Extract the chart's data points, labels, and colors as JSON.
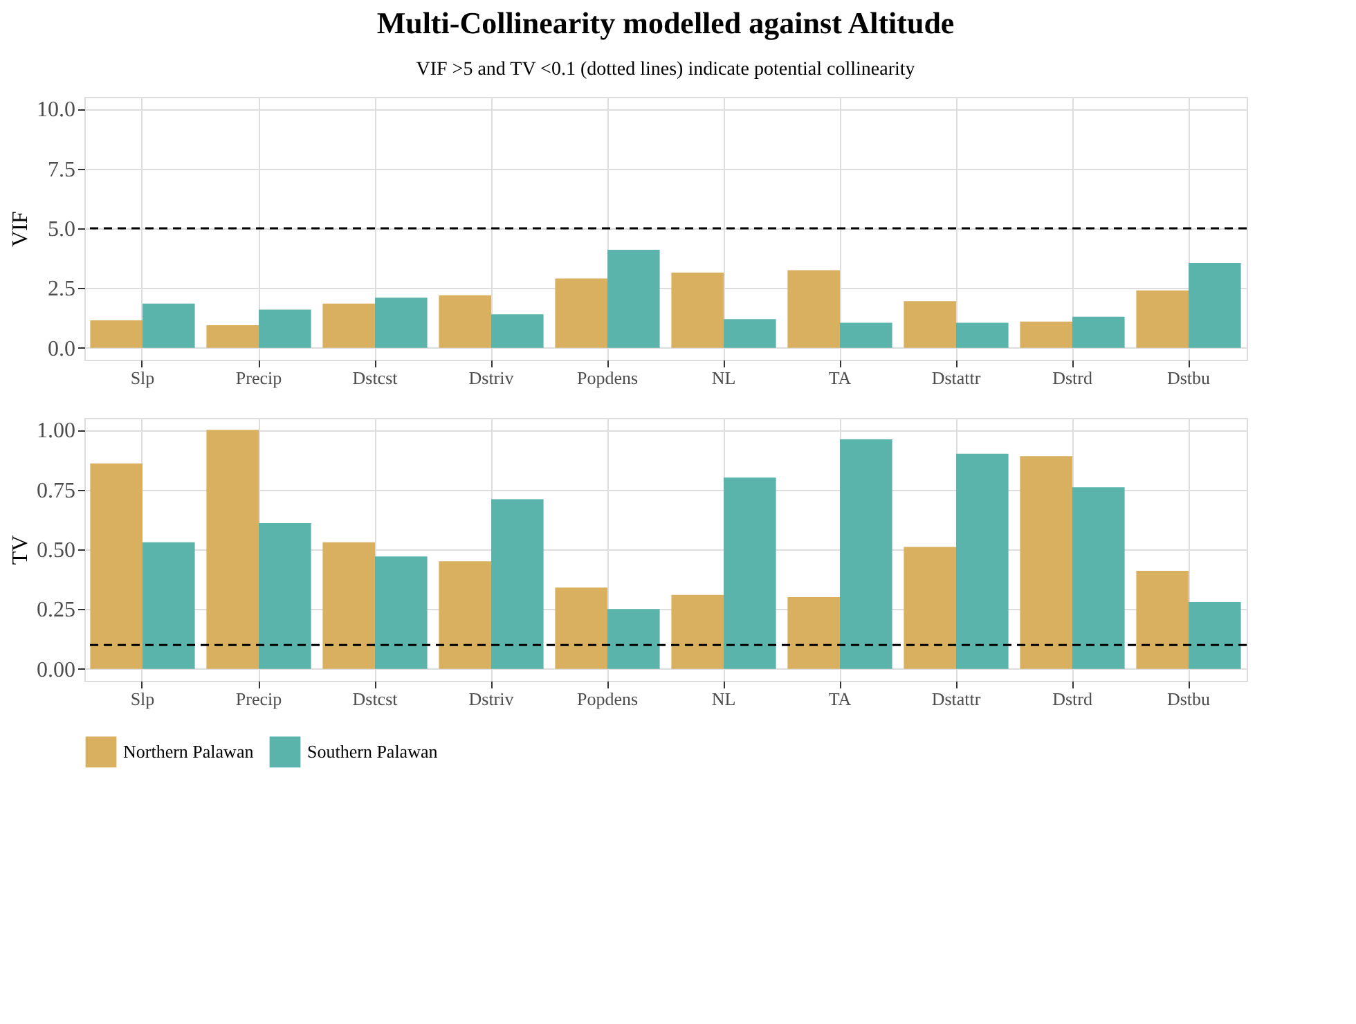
{
  "chart_data": [
    {
      "type": "bar",
      "title": "Multi-Collinearity modelled against Altitude",
      "subtitle": "VIF >5 and TV <0.1 (dotted lines) indicate potential collinearity",
      "ylabel": "VIF",
      "categories": [
        "Slp",
        "Precip",
        "Dstcst",
        "Dstriv",
        "Popdens",
        "NL",
        "TA",
        "Dstattr",
        "Dstrd",
        "Dstbu"
      ],
      "series": [
        {
          "name": "Northern Palawan",
          "color": "#d8b060",
          "values": [
            1.15,
            0.95,
            1.85,
            2.2,
            2.9,
            3.15,
            3.25,
            1.95,
            1.1,
            2.4
          ]
        },
        {
          "name": "Southern Palawan",
          "color": "#5ab4ac",
          "values": [
            1.85,
            1.6,
            2.1,
            1.4,
            4.1,
            1.2,
            1.05,
            1.05,
            1.3,
            3.55
          ]
        }
      ],
      "ylim": [
        -0.5,
        10.5
      ],
      "yticks": [
        {
          "value": 0,
          "label": "0.0"
        },
        {
          "value": 2.5,
          "label": "2.5"
        },
        {
          "value": 5,
          "label": "5.0"
        },
        {
          "value": 7.5,
          "label": "7.5"
        },
        {
          "value": 10,
          "label": "10.0"
        }
      ],
      "ref_lines": [
        {
          "axis": "y",
          "value": 5,
          "color": "#000000",
          "line_style": "dashed"
        }
      ],
      "grid": true,
      "legend": "bottom"
    },
    {
      "type": "bar",
      "ylabel": "TV",
      "categories": [
        "Slp",
        "Precip",
        "Dstcst",
        "Dstriv",
        "Popdens",
        "NL",
        "TA",
        "Dstattr",
        "Dstrd",
        "Dstbu"
      ],
      "series": [
        {
          "name": "Northern Palawan",
          "color": "#d8b060",
          "values": [
            0.86,
            1.0,
            0.53,
            0.45,
            0.34,
            0.31,
            0.3,
            0.51,
            0.89,
            0.41
          ]
        },
        {
          "name": "Southern Palawan",
          "color": "#5ab4ac",
          "values": [
            0.53,
            0.61,
            0.47,
            0.71,
            0.25,
            0.8,
            0.96,
            0.9,
            0.76,
            0.28
          ]
        }
      ],
      "ylim": [
        -0.05,
        1.05
      ],
      "yticks": [
        {
          "value": 0,
          "label": "0.00"
        },
        {
          "value": 0.25,
          "label": "0.25"
        },
        {
          "value": 0.5,
          "label": "0.50"
        },
        {
          "value": 0.75,
          "label": "0.75"
        },
        {
          "value": 1,
          "label": "1.00"
        }
      ],
      "ref_lines": [
        {
          "axis": "y",
          "value": 0.1,
          "color": "#000000",
          "line_style": "dashed"
        }
      ],
      "grid": true,
      "legend": "bottom"
    }
  ]
}
